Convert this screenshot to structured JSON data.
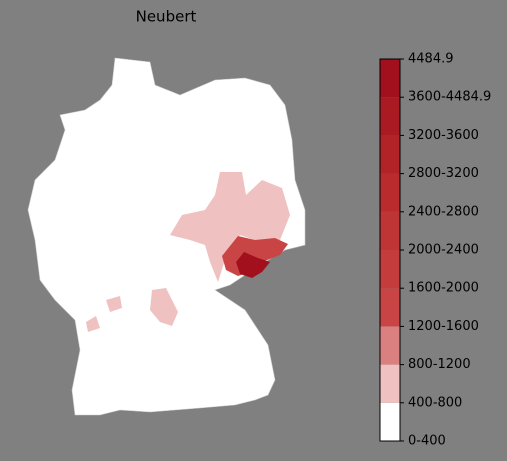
{
  "title": "Neubert",
  "legend": {
    "labels": [
      "0-400",
      "400-800",
      "800-1200",
      "1200-1600",
      "1600-2000",
      "2000-2400",
      "2400-2800",
      "2800-3200",
      "3200-3600",
      "3600-4484.9",
      "4484.9"
    ],
    "colors": [
      "#ffffff",
      "#efc1c1",
      "#db8080",
      "#c94545",
      "#c43c3c",
      "#bf3434",
      "#b92b2d",
      "#b22328",
      "#aa1a22",
      "#a1101c"
    ]
  }
}
